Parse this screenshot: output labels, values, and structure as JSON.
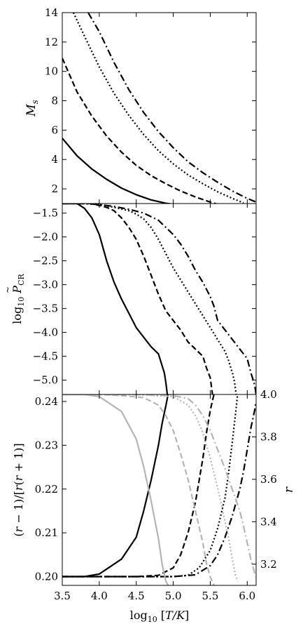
{
  "chart_data": [
    {
      "type": "line",
      "ylabel": "M_s",
      "xlim": [
        3.5,
        6.12
      ],
      "ylim": [
        1.0,
        14.0
      ],
      "xticks": [
        3.5,
        4.0,
        4.5,
        5.0,
        5.5,
        6.0
      ],
      "yticks": [
        2,
        4,
        6,
        8,
        10,
        12,
        14
      ],
      "ytick_labels": [
        "2",
        "4",
        "6",
        "8",
        "10",
        "12",
        "14"
      ],
      "series": [
        {
          "style": "solid",
          "color": "#000000",
          "x": [
            3.5,
            3.7,
            3.9,
            4.1,
            4.3,
            4.5,
            4.7,
            4.9,
            5.0
          ],
          "y": [
            5.45,
            4.25,
            3.35,
            2.65,
            2.05,
            1.6,
            1.25,
            1.02,
            0.95
          ]
        },
        {
          "style": "dashed",
          "color": "#000000",
          "x": [
            3.5,
            3.7,
            3.9,
            4.1,
            4.3,
            4.5,
            4.7,
            4.9,
            5.1,
            5.3,
            5.5,
            5.6
          ],
          "y": [
            10.9,
            8.6,
            6.95,
            5.6,
            4.5,
            3.6,
            2.9,
            2.35,
            1.85,
            1.45,
            1.1,
            0.95
          ]
        },
        {
          "style": "dotted",
          "color": "#000000",
          "x": [
            3.65,
            3.8,
            4.0,
            4.2,
            4.4,
            4.6,
            4.8,
            5.0,
            5.2,
            5.4,
            5.6,
            5.8,
            5.95
          ],
          "y": [
            14.0,
            12.4,
            10.3,
            8.5,
            7.0,
            5.7,
            4.6,
            3.7,
            2.95,
            2.35,
            1.8,
            1.35,
            1.05
          ]
        },
        {
          "style": "dashdot",
          "color": "#000000",
          "x": [
            3.85,
            4.0,
            4.2,
            4.4,
            4.6,
            4.8,
            5.0,
            5.2,
            5.4,
            5.6,
            5.8,
            6.0,
            6.12
          ],
          "y": [
            14.0,
            12.7,
            10.6,
            8.75,
            7.2,
            5.9,
            4.8,
            3.85,
            3.1,
            2.45,
            1.85,
            1.35,
            1.1
          ]
        }
      ]
    },
    {
      "type": "line",
      "ylabel": "log10 P_CR",
      "xlim": [
        3.5,
        6.12
      ],
      "ylim": [
        -5.3,
        -1.3
      ],
      "xticks": [
        3.5,
        4.0,
        4.5,
        5.0,
        5.5,
        6.0
      ],
      "yticks": [
        -5.0,
        -4.5,
        -4.0,
        -3.5,
        -3.0,
        -2.5,
        -2.0,
        -1.5
      ],
      "ytick_labels": [
        "−5.0",
        "−4.5",
        "−4.0",
        "−3.5",
        "−3.0",
        "−2.5",
        "−2.0",
        "−1.5"
      ],
      "series": [
        {
          "style": "solid",
          "color": "#000000",
          "x": [
            3.5,
            3.7,
            3.8,
            3.9,
            4.0,
            4.1,
            4.2,
            4.3,
            4.4,
            4.5,
            4.6,
            4.7,
            4.8,
            4.85,
            4.88,
            4.9,
            4.92
          ],
          "y": [
            -1.3,
            -1.3,
            -1.4,
            -1.6,
            -1.95,
            -2.5,
            -2.95,
            -3.3,
            -3.6,
            -3.9,
            -4.1,
            -4.3,
            -4.45,
            -4.7,
            -4.85,
            -5.05,
            -5.3
          ]
        },
        {
          "style": "dashed",
          "color": "#000000",
          "x": [
            3.5,
            3.7,
            3.9,
            4.1,
            4.2,
            4.3,
            4.4,
            4.5,
            4.6,
            4.7,
            4.8,
            4.9,
            5.0,
            5.1,
            5.2,
            5.3,
            5.4,
            5.45,
            5.5,
            5.53
          ],
          "y": [
            -1.3,
            -1.3,
            -1.3,
            -1.38,
            -1.45,
            -1.6,
            -1.8,
            -2.05,
            -2.4,
            -2.8,
            -3.2,
            -3.55,
            -3.75,
            -3.95,
            -4.2,
            -4.35,
            -4.5,
            -4.75,
            -4.95,
            -5.3
          ]
        },
        {
          "style": "dotted",
          "color": "#000000",
          "x": [
            3.5,
            3.8,
            4.0,
            4.2,
            4.4,
            4.5,
            4.6,
            4.7,
            4.8,
            4.9,
            5.0,
            5.1,
            5.2,
            5.3,
            5.4,
            5.5,
            5.6,
            5.7,
            5.75,
            5.8,
            5.83,
            5.85
          ],
          "y": [
            -1.3,
            -1.3,
            -1.32,
            -1.38,
            -1.45,
            -1.52,
            -1.62,
            -1.8,
            -2.05,
            -2.35,
            -2.65,
            -2.9,
            -3.15,
            -3.4,
            -3.65,
            -3.9,
            -4.15,
            -4.4,
            -4.6,
            -4.85,
            -5.05,
            -5.3
          ]
        },
        {
          "style": "dashdot",
          "color": "#000000",
          "x": [
            3.5,
            3.8,
            4.0,
            4.2,
            4.4,
            4.6,
            4.8,
            4.9,
            5.0,
            5.1,
            5.2,
            5.3,
            5.4,
            5.5,
            5.55,
            5.6,
            5.7,
            5.8,
            5.9,
            6.0,
            6.05,
            6.1,
            6.12
          ],
          "y": [
            -1.3,
            -1.3,
            -1.32,
            -1.36,
            -1.42,
            -1.5,
            -1.65,
            -1.8,
            -1.95,
            -2.15,
            -2.4,
            -2.7,
            -2.95,
            -3.25,
            -3.45,
            -3.75,
            -3.95,
            -4.15,
            -4.35,
            -4.55,
            -4.85,
            -5.1,
            -5.3
          ]
        }
      ]
    },
    {
      "type": "line",
      "ylabel": "(r-1)/[r(r+1)]",
      "ylabel_right": "r",
      "xlabel": "log10 [T/K]",
      "xlim": [
        3.5,
        6.12
      ],
      "ylim": [
        0.198,
        0.2416
      ],
      "ylim_right": [
        3.1,
        4.0
      ],
      "xticks": [
        3.5,
        4.0,
        4.5,
        5.0,
        5.5,
        6.0
      ],
      "xtick_labels": [
        "3.5",
        "4.0",
        "4.5",
        "5.0",
        "5.5",
        "6.0"
      ],
      "yticks": [
        0.2,
        0.21,
        0.22,
        0.23,
        0.24
      ],
      "ytick_labels": [
        "0.20",
        "0.21",
        "0.22",
        "0.23",
        "0.24"
      ],
      "yticks_right": [
        3.2,
        3.4,
        3.6,
        3.8,
        4.0
      ],
      "ytick_labels_right": [
        "3.2",
        "3.4",
        "3.6",
        "3.8",
        "4.0"
      ],
      "series": [
        {
          "axis": "left",
          "style": "solid",
          "color": "#000000",
          "x": [
            3.5,
            3.8,
            4.0,
            4.3,
            4.5,
            4.6,
            4.7,
            4.8,
            4.85,
            4.9,
            4.93
          ],
          "y": [
            0.2,
            0.2,
            0.2006,
            0.204,
            0.209,
            0.215,
            0.222,
            0.23,
            0.235,
            0.239,
            0.2416
          ]
        },
        {
          "axis": "left",
          "style": "dashed",
          "color": "#000000",
          "x": [
            3.5,
            4.0,
            4.5,
            4.8,
            5.0,
            5.1,
            5.2,
            5.3,
            5.35,
            5.4,
            5.45,
            5.5,
            5.55
          ],
          "y": [
            0.2,
            0.2,
            0.2,
            0.2003,
            0.202,
            0.205,
            0.21,
            0.217,
            0.222,
            0.227,
            0.233,
            0.238,
            0.2416
          ]
        },
        {
          "axis": "left",
          "style": "dotted",
          "color": "#000000",
          "x": [
            3.5,
            4.0,
            4.5,
            5.0,
            5.2,
            5.35,
            5.5,
            5.6,
            5.7,
            5.75,
            5.8,
            5.84,
            5.87
          ],
          "y": [
            0.2,
            0.2,
            0.2,
            0.2,
            0.2003,
            0.202,
            0.206,
            0.211,
            0.218,
            0.224,
            0.231,
            0.237,
            0.2416
          ]
        },
        {
          "axis": "left",
          "style": "dashdot",
          "color": "#000000",
          "x": [
            3.5,
            4.0,
            4.5,
            5.0,
            5.3,
            5.5,
            5.6,
            5.7,
            5.8,
            5.9,
            5.95,
            6.0,
            6.05,
            6.1,
            6.12
          ],
          "y": [
            0.2,
            0.2,
            0.2,
            0.2,
            0.2004,
            0.2025,
            0.205,
            0.209,
            0.214,
            0.22,
            0.224,
            0.229,
            0.234,
            0.238,
            0.24
          ]
        },
        {
          "axis": "right",
          "style": "solid",
          "color": "#b4b4b4",
          "x": [
            3.5,
            3.8,
            4.0,
            4.3,
            4.5,
            4.6,
            4.7,
            4.8,
            4.85,
            4.9,
            4.93
          ],
          "y": [
            4.0,
            4.0,
            3.99,
            3.92,
            3.79,
            3.66,
            3.5,
            3.32,
            3.2,
            3.12,
            3.1
          ]
        },
        {
          "axis": "right",
          "style": "dashed",
          "color": "#b4b4b4",
          "x": [
            3.5,
            4.0,
            4.3,
            4.6,
            4.8,
            4.9,
            5.0,
            5.1,
            5.2,
            5.3,
            5.4,
            5.45,
            5.5,
            5.55
          ],
          "y": [
            4.0,
            4.0,
            3.995,
            3.985,
            3.95,
            3.9,
            3.83,
            3.72,
            3.6,
            3.45,
            3.3,
            3.2,
            3.14,
            3.1
          ]
        },
        {
          "axis": "right",
          "style": "dotted",
          "color": "#b4b4b4",
          "x": [
            3.5,
            4.5,
            5.0,
            5.2,
            5.3,
            5.4,
            5.5,
            5.6,
            5.7,
            5.75,
            5.8,
            5.84,
            5.87
          ],
          "y": [
            4.0,
            4.0,
            3.99,
            3.95,
            3.9,
            3.82,
            3.7,
            3.56,
            3.4,
            3.32,
            3.22,
            3.15,
            3.12
          ]
        },
        {
          "axis": "right",
          "style": "dashdot",
          "color": "#b4b4b4",
          "x": [
            3.5,
            4.5,
            5.0,
            5.2,
            5.3,
            5.4,
            5.5,
            5.6,
            5.7,
            5.8,
            5.9,
            5.95,
            6.0,
            6.05,
            6.1,
            6.12
          ],
          "y": [
            4.0,
            4.0,
            3.995,
            3.98,
            3.95,
            3.9,
            3.83,
            3.74,
            3.65,
            3.55,
            3.45,
            3.38,
            3.3,
            3.22,
            3.16,
            3.14
          ]
        }
      ]
    }
  ]
}
